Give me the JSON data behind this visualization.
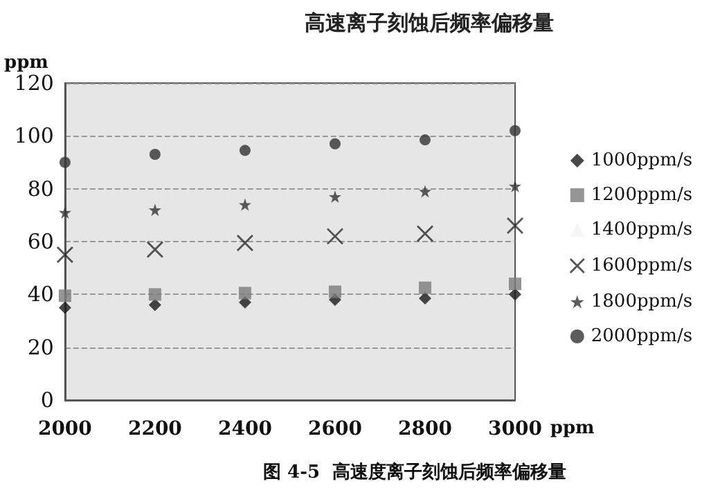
{
  "chart_data": {
    "type": "scatter",
    "title": "高速离子刻蚀后频率偏移量",
    "xlabel": "ppm",
    "ylabel": "ppm",
    "x": [
      2000,
      2200,
      2400,
      2600,
      2800,
      3000
    ],
    "series": [
      {
        "name": "1000ppm/s",
        "color": "#1a1a1a",
        "marker": "diamond",
        "values": [
          35,
          36,
          37,
          38,
          38.5,
          40
        ]
      },
      {
        "name": "1200ppm/s",
        "color": "#7a7a7a",
        "marker": "square",
        "values": [
          39.5,
          40,
          40.5,
          41,
          42.5,
          44
        ]
      },
      {
        "name": "1400ppm/s",
        "color": "#f2f2f2",
        "marker": "triangle",
        "values": [
          null,
          null,
          null,
          null,
          null,
          null
        ]
      },
      {
        "name": "1600ppm/s",
        "color": "#2a2a2a",
        "marker": "cross",
        "values": [
          55,
          57,
          59.5,
          62,
          63,
          66
        ]
      },
      {
        "name": "1800ppm/s",
        "color": "#333333",
        "marker": "star",
        "values": [
          71,
          72,
          74,
          77,
          79,
          81
        ]
      },
      {
        "name": "2000ppm/s",
        "color": "#333333",
        "marker": "circle",
        "values": [
          90,
          93,
          94.5,
          97,
          98.5,
          102
        ]
      }
    ],
    "xlim": [
      2000,
      3000
    ],
    "xticks": [
      2000,
      2200,
      2400,
      2600,
      2800,
      3000
    ],
    "ylim": [
      0,
      120
    ],
    "yticks": [
      0,
      20,
      40,
      60,
      80,
      100,
      120
    ],
    "grid": "y",
    "legend": "right",
    "annotations": [
      "图 4-5  高速度离子刻蚀后频率偏移量"
    ]
  }
}
